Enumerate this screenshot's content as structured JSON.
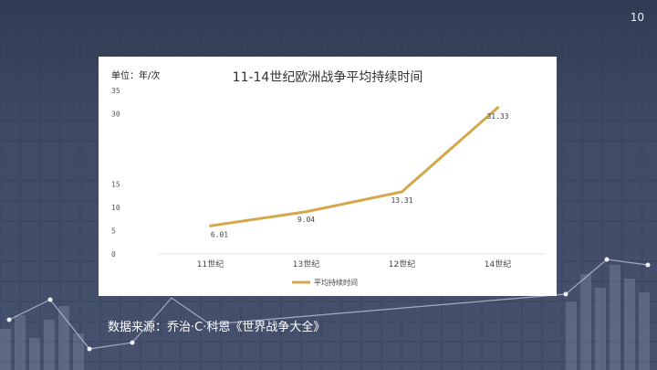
{
  "page_number": "10",
  "unit_label": "单位：年/次",
  "source_note": "数据来源：乔治·C·科恩《世界战争大全》",
  "colors": {
    "line": "#d4a84a",
    "background": "#3f4b66",
    "grid": "#e6e6e6"
  },
  "chart_data": {
    "type": "line",
    "title": "11-14世纪欧洲战争平均持续时间",
    "ylabel": "",
    "xlabel": "",
    "categories": [
      "11世纪",
      "13世纪",
      "12世纪",
      "14世纪"
    ],
    "series": [
      {
        "name": "平均持续时间",
        "values": [
          6.01,
          9.04,
          13.31,
          31.33
        ],
        "labels": [
          "6.01",
          "9.04",
          "13.31",
          "31.33"
        ]
      }
    ],
    "ylim": [
      0,
      35
    ],
    "yticks": [
      0,
      5,
      10,
      15,
      20,
      25,
      30,
      35
    ],
    "ytick_labels": [
      "0",
      "5",
      "10",
      "15",
      "",
      "",
      "30",
      "35"
    ],
    "grid": false,
    "legend": "bottom"
  }
}
